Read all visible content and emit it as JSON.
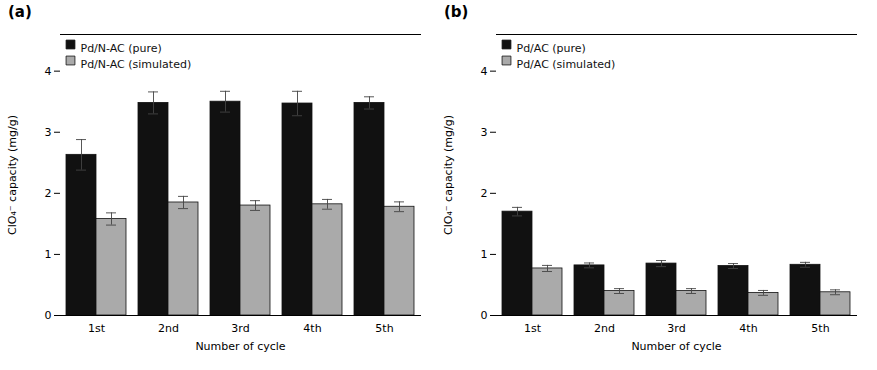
{
  "chart_data": [
    {
      "type": "bar",
      "title": "(a)",
      "xlabel": "Number of cycle",
      "ylabel": "ClO₄⁻ capacity (mg/g)",
      "categories": [
        "1st",
        "2nd",
        "3rd",
        "4th",
        "5th"
      ],
      "series": [
        {
          "name": "Pd/N-AC (pure)",
          "color": "#111111",
          "values": [
            2.63,
            3.48,
            3.5,
            3.47,
            3.48
          ],
          "errors": [
            0.25,
            0.18,
            0.17,
            0.2,
            0.1
          ]
        },
        {
          "name": "Pd/N-AC (simulated)",
          "color": "#aaaaaa",
          "values": [
            1.58,
            1.85,
            1.8,
            1.82,
            1.78
          ],
          "errors": [
            0.1,
            0.1,
            0.08,
            0.08,
            0.08
          ]
        }
      ],
      "ylim": [
        0,
        4.6
      ],
      "yticks": [
        0,
        1,
        2,
        3,
        4
      ],
      "grid": false,
      "legend": "upper left"
    },
    {
      "type": "bar",
      "title": "(b)",
      "xlabel": "Number of cycle",
      "ylabel": "ClO₄⁻ capacity (mg/g)",
      "categories": [
        "1st",
        "2nd",
        "3rd",
        "4th",
        "5th"
      ],
      "series": [
        {
          "name": "Pd/AC (pure)",
          "color": "#111111",
          "values": [
            1.7,
            0.82,
            0.85,
            0.81,
            0.83
          ],
          "errors": [
            0.07,
            0.04,
            0.05,
            0.04,
            0.04
          ]
        },
        {
          "name": "Pd/AC (simulated)",
          "color": "#aaaaaa",
          "values": [
            0.77,
            0.4,
            0.4,
            0.37,
            0.38
          ],
          "errors": [
            0.05,
            0.04,
            0.04,
            0.04,
            0.04
          ]
        }
      ],
      "ylim": [
        0,
        4.6
      ],
      "yticks": [
        0,
        1,
        2,
        3,
        4
      ],
      "grid": false,
      "legend": "upper left"
    }
  ]
}
